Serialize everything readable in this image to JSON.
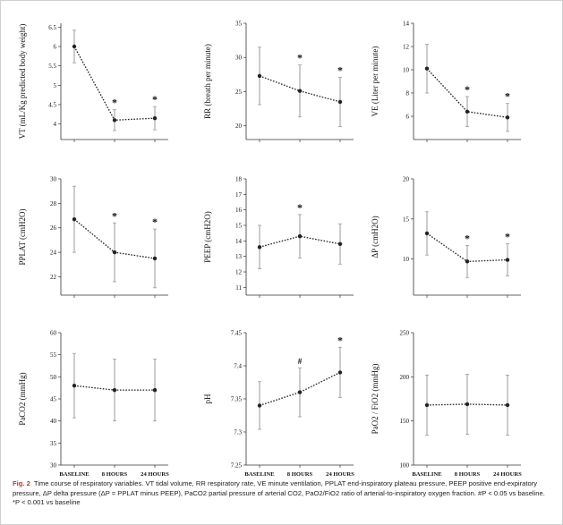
{
  "figure": {
    "caption_label": "Fig. 2",
    "caption_text": "Time course of respiratory variables. VT tidal volume, RR respiratory rate, VE minute ventilation, PPLAT end-inspiratory plateau pressure, PEEP positive end-expiratory pressure, ΔP delta pressure (ΔP = PPLAT minus PEEP), PaCO2 partial pressure of arterial CO2, PaO2/FiO2 ratio of arterial-to-inspiratory oxygen fraction. #P < 0.05 vs baseline. *P < 0.001 vs baseline"
  },
  "colors": {
    "line": "#222222",
    "errorbar": "#9a9a9a",
    "frame": "#333333",
    "grid": "none"
  },
  "chart_data": [
    {
      "type": "line",
      "ylabel": "VT (mL/Kg predicted body weight)",
      "yticks": [
        "4",
        "4.5",
        "5",
        "5.5",
        "6",
        "6.5"
      ],
      "ylim": [
        3.6,
        6.6
      ],
      "categories": [
        "BASELINE",
        "8 HOURS",
        "24 HOURS"
      ],
      "show_xlabels": false,
      "values": [
        6.0,
        4.1,
        4.15
      ],
      "err": [
        0.42,
        0.27,
        0.3
      ],
      "marks": [
        "",
        "*",
        "*"
      ]
    },
    {
      "type": "line",
      "ylabel": "RR (breath per minute)",
      "yticks": [
        "20",
        "25",
        "30",
        "35"
      ],
      "ylim": [
        18,
        35
      ],
      "categories": [
        "BASELINE",
        "8 HOURS",
        "24 HOURS"
      ],
      "show_xlabels": false,
      "values": [
        27.3,
        25.1,
        23.5
      ],
      "err": [
        4.2,
        3.8,
        3.6
      ],
      "marks": [
        "",
        "*",
        "*"
      ]
    },
    {
      "type": "line",
      "ylabel": "VE (Liter per minute)",
      "yticks": [
        "6",
        "8",
        "10",
        "12",
        "14"
      ],
      "ylim": [
        4,
        14
      ],
      "categories": [
        "BASELINE",
        "8 HOURS",
        "24 HOURS"
      ],
      "show_xlabels": false,
      "values": [
        10.1,
        6.4,
        5.9
      ],
      "err": [
        2.1,
        1.3,
        1.2
      ],
      "marks": [
        "",
        "*",
        "*"
      ]
    },
    {
      "type": "line",
      "ylabel": "PPLAT (cmH2O)",
      "yticks": [
        "22",
        "24",
        "26",
        "28",
        "30"
      ],
      "ylim": [
        20.5,
        30
      ],
      "categories": [
        "BASELINE",
        "8 HOURS",
        "24 HOURS"
      ],
      "show_xlabels": false,
      "values": [
        26.7,
        24.0,
        23.5
      ],
      "err": [
        2.7,
        2.4,
        2.4
      ],
      "marks": [
        "",
        "*",
        "*"
      ]
    },
    {
      "type": "line",
      "ylabel": "PEEP (cmH2O)",
      "yticks": [
        "11",
        "12",
        "13",
        "14",
        "15",
        "16",
        "17",
        "18"
      ],
      "ylim": [
        10.5,
        18
      ],
      "categories": [
        "BASELINE",
        "8 HOURS",
        "24 HOURS"
      ],
      "show_xlabels": false,
      "values": [
        13.6,
        14.3,
        13.8
      ],
      "err": [
        1.4,
        1.4,
        1.3
      ],
      "marks": [
        "",
        "*",
        ""
      ]
    },
    {
      "type": "line",
      "ylabel": "ΔP (cmH2O)",
      "yticks": [
        "10",
        "15",
        "20"
      ],
      "ylim": [
        5.5,
        20
      ],
      "categories": [
        "BASELINE",
        "8 HOURS",
        "24 HOURS"
      ],
      "show_xlabels": false,
      "values": [
        13.2,
        9.7,
        9.9
      ],
      "err": [
        2.7,
        2.0,
        2.0
      ],
      "marks": [
        "",
        "*",
        "*"
      ]
    },
    {
      "type": "line",
      "ylabel": "PaCO2 (mmHg)",
      "yticks": [
        "30",
        "35",
        "40",
        "45",
        "50",
        "55",
        "60"
      ],
      "ylim": [
        30,
        60
      ],
      "categories": [
        "BASELINE",
        "8 HOURS",
        "24 HOURS"
      ],
      "show_xlabels": true,
      "values": [
        48.0,
        47.0,
        47.0
      ],
      "err": [
        7.3,
        7.0,
        7.0
      ],
      "marks": [
        "",
        "",
        ""
      ]
    },
    {
      "type": "line",
      "ylabel": "pH",
      "yticks": [
        "7.25",
        "7.3",
        "7.35",
        "7.4",
        "7.45"
      ],
      "ylim": [
        7.25,
        7.45
      ],
      "categories": [
        "BASELINE",
        "8 HOURS",
        "24 HOURS"
      ],
      "show_xlabels": true,
      "values": [
        7.34,
        7.36,
        7.39
      ],
      "err": [
        0.036,
        0.037,
        0.038
      ],
      "marks": [
        "",
        "#",
        "*"
      ]
    },
    {
      "type": "line",
      "ylabel": "PaO2 / FiO2 (mmHg)",
      "yticks": [
        "100",
        "150",
        "200",
        "250"
      ],
      "ylim": [
        100,
        250
      ],
      "categories": [
        "BASELINE",
        "8 HOURS",
        "24 HOURS"
      ],
      "show_xlabels": true,
      "values": [
        168,
        169,
        168
      ],
      "err": [
        34,
        34,
        34
      ],
      "marks": [
        "",
        "",
        ""
      ]
    }
  ]
}
